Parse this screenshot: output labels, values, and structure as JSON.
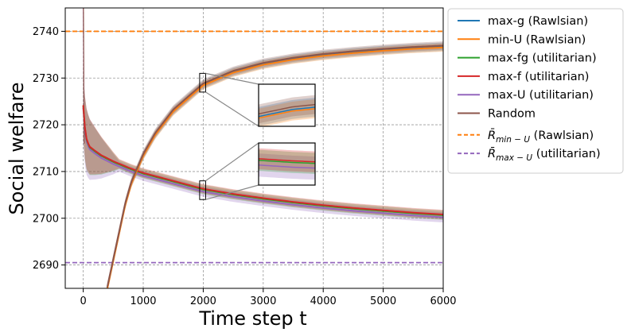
{
  "chart_data": {
    "type": "line",
    "title": "",
    "xlabel": "Time step t",
    "ylabel": "Social welfare",
    "xlim": [
      -300,
      6000
    ],
    "ylim": [
      2685,
      2745
    ],
    "xticks": [
      0,
      1000,
      2000,
      3000,
      4000,
      5000,
      6000
    ],
    "yticks": [
      2690,
      2700,
      2710,
      2720,
      2730,
      2740
    ],
    "grid": true,
    "legend_position": "outside-right",
    "series": [
      {
        "name": "max-g (Rawlsian)",
        "group": "rawlsian",
        "color": "#1f77b4",
        "offset": 0.0,
        "band": 0.9
      },
      {
        "name": "min-U (Rawlsian)",
        "group": "rawlsian",
        "color": "#ff7f0e",
        "offset": -0.15,
        "band": 0.9
      },
      {
        "name": "max-fg (utilitarian)",
        "group": "utilitarian",
        "color": "#2ca02c",
        "offset": 0.05,
        "band": 1.0
      },
      {
        "name": "max-f (utilitarian)",
        "group": "utilitarian",
        "color": "#d62728",
        "offset": 0.2,
        "band": 1.0
      },
      {
        "name": "max-U (utilitarian)",
        "group": "utilitarian",
        "color": "#9467bd",
        "offset": -0.4,
        "band": 1.1
      },
      {
        "name": "Random",
        "group": "rawlsian",
        "color": "#8c564b",
        "offset": 0.25,
        "band": 0.9
      }
    ],
    "curves": {
      "rawlsian": {
        "t": [
          400,
          450,
          500,
          600,
          700,
          800,
          1000,
          1200,
          1500,
          2000,
          2500,
          3000,
          3500,
          4000,
          4500,
          5000,
          5500,
          6000
        ],
        "y": [
          2685,
          2688,
          2691,
          2697,
          2703,
          2707.5,
          2713.5,
          2718,
          2723,
          2728.6,
          2731.3,
          2733.0,
          2734.1,
          2734.9,
          2735.5,
          2736.0,
          2736.4,
          2736.7
        ]
      },
      "utilitarian": {
        "t": [
          0,
          20,
          50,
          100,
          200,
          300,
          500,
          800,
          1000,
          1500,
          2000,
          2500,
          3000,
          3500,
          4000,
          4500,
          5000,
          5500,
          6000
        ],
        "y": [
          2724,
          2720,
          2717,
          2715.2,
          2714.2,
          2713.3,
          2712,
          2710.4,
          2709.5,
          2707.8,
          2706.1,
          2705.0,
          2704.1,
          2703.3,
          2702.6,
          2702.0,
          2701.5,
          2701.0,
          2700.6
        ]
      }
    },
    "reference_lines": [
      {
        "name": "R̄min-U (Rawlsian)",
        "label_main": "R̄",
        "label_sub": "min − U",
        "label_rest": " (Rawlsian)",
        "y": 2740,
        "color": "#ff7f0e",
        "style": "dashed"
      },
      {
        "name": "R̄max-U (utilitarian)",
        "label_main": "R̄",
        "label_sub": "max − U",
        "label_rest": " (utilitarian)",
        "y": 2690.5,
        "color": "#9467bd",
        "style": "dashed"
      }
    ],
    "insets": [
      {
        "name": "rawlsian-zoom",
        "group": "rawlsian",
        "region": {
          "t": [
            1940,
            2040
          ],
          "y": [
            2727,
            2731
          ]
        }
      },
      {
        "name": "utilitarian-zoom",
        "group": "utilitarian",
        "region": {
          "t": [
            1940,
            2040
          ],
          "y": [
            2704,
            2708
          ]
        }
      }
    ]
  }
}
